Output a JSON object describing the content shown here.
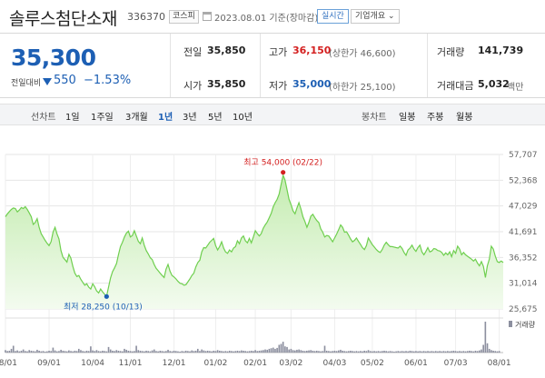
{
  "header": {
    "name": "솔루스첨단소재",
    "code": "336370",
    "market": "코스피",
    "date": "2023.08.01 기준(장마감)",
    "live_btn": "실시간",
    "info_btn": "기업개요 ⌄"
  },
  "quote": {
    "price": "35,300",
    "change_label": "전일대비",
    "change_abs": "550",
    "change_pct": "−1.53%",
    "prev_label": "전일",
    "prev_value": "35,850",
    "high_label": "고가",
    "high_value": "36,150",
    "upper_limit": "(상한가 46,600)",
    "volume_label": "거래량",
    "volume_value": "141,739",
    "open_label": "시가",
    "open_value": "35,850",
    "low_label": "저가",
    "low_value": "35,000",
    "lower_limit": "(하한가 25,100)",
    "amount_label": "거래대금",
    "amount_value": "5,032",
    "amount_unit": "백만"
  },
  "toolbar": {
    "line_label": "선차트",
    "periods": [
      "1일",
      "1주일",
      "3개월",
      "1년",
      "3년",
      "5년",
      "10년"
    ],
    "active_period": "1년",
    "candle_label": "봉차트",
    "candles": [
      "일봉",
      "주봉",
      "월봉"
    ]
  },
  "colors": {
    "price_line": "#6fcf4f",
    "area_top": "#c4ecb0",
    "area_bottom": "#f3fbef",
    "down": "#1d5fb4",
    "up": "#d42020",
    "volume_bar": "#8c8f9f"
  },
  "chart_data": {
    "type": "area",
    "y_ticks": [
      "57,707",
      "52,368",
      "47,029",
      "41,691",
      "36,352",
      "31,014",
      "25,675"
    ],
    "ylim": [
      25675,
      57707
    ],
    "x_ticks": [
      "08/01",
      "09/01",
      "10/04",
      "11/01",
      "12/01",
      "01/02",
      "02/01",
      "03/02",
      "04/03",
      "05/02",
      "06/01",
      "07/03",
      "08/01"
    ],
    "x_tick_pos": [
      0,
      22,
      44,
      63,
      85,
      106,
      126,
      144,
      166,
      185,
      207,
      227,
      249
    ],
    "max_annotation": {
      "label": "최고 54,000 (02/22)",
      "index": 140,
      "value": 54000
    },
    "min_annotation": {
      "label": "최저 28,250 (10/13)",
      "index": 51,
      "value": 28250
    },
    "volume_label": "거래량",
    "price": [
      44800,
      45400,
      45900,
      46300,
      46600,
      46500,
      45800,
      46200,
      46700,
      46500,
      46900,
      46300,
      45600,
      44800,
      43200,
      43600,
      44400,
      42600,
      41300,
      40600,
      39900,
      39300,
      38800,
      39600,
      41600,
      42600,
      41200,
      40200,
      37800,
      36400,
      35900,
      35400,
      37000,
      36200,
      34500,
      33100,
      32400,
      32600,
      31800,
      31200,
      30600,
      30900,
      30200,
      29800,
      30900,
      30300,
      29400,
      29000,
      29800,
      29200,
      28700,
      28250,
      30200,
      32100,
      33400,
      34200,
      35100,
      36900,
      38600,
      39500,
      40600,
      41400,
      41800,
      40600,
      40900,
      41900,
      40800,
      39700,
      39200,
      40400,
      38900,
      37800,
      37100,
      36300,
      35900,
      34900,
      34100,
      33600,
      33100,
      32600,
      32200,
      33900,
      34900,
      33500,
      32600,
      32300,
      31900,
      31400,
      31000,
      30900,
      30600,
      30700,
      31300,
      31900,
      32600,
      33100,
      34400,
      35300,
      35800,
      37500,
      38400,
      38300,
      38900,
      39500,
      39900,
      40300,
      38800,
      37900,
      38600,
      39600,
      38300,
      37500,
      37200,
      37900,
      37500,
      38300,
      38600,
      39800,
      39200,
      40400,
      40800,
      39800,
      39400,
      40300,
      39400,
      40600,
      41900,
      41300,
      40800,
      41300,
      42400,
      43100,
      43700,
      44600,
      45500,
      46800,
      47700,
      48400,
      49500,
      51500,
      53400,
      52400,
      50400,
      48400,
      47300,
      46000,
      45400,
      46600,
      47700,
      46400,
      44800,
      43800,
      42600,
      43600,
      44900,
      45300,
      44600,
      44000,
      43600,
      42300,
      41600,
      40600,
      40900,
      40800,
      40200,
      39600,
      40400,
      41200,
      42100,
      43100,
      42600,
      41600,
      41700,
      41000,
      40200,
      39600,
      39900,
      40400,
      39700,
      39100,
      38400,
      38000,
      38800,
      40400,
      39700,
      39000,
      38500,
      38000,
      37600,
      37400,
      38000,
      38900,
      39500,
      39000,
      38600,
      38600,
      38500,
      38400,
      38300,
      38700,
      38200,
      37400,
      36800,
      37900,
      38300,
      38900,
      38100,
      37600,
      38400,
      38900,
      37500,
      36900,
      37600,
      38400,
      37500,
      37700,
      38200,
      38100,
      37800,
      37700,
      37400,
      36800,
      37300,
      36900,
      37500,
      36500,
      37800,
      37200,
      38700,
      38100,
      36900,
      37400,
      36900,
      36600,
      36300,
      36000,
      35600,
      36000,
      35200,
      34600,
      35500,
      34500,
      32200,
      34600,
      36000,
      38700,
      38100,
      36600,
      35500,
      35300,
      35600,
      35300
    ],
    "volume": [
      0.08,
      0.05,
      0.06,
      0.12,
      0.22,
      0.05,
      0.07,
      0.04,
      0.06,
      0.1,
      0.05,
      0.04,
      0.08,
      0.06,
      0.05,
      0.04,
      0.09,
      0.06,
      0.04,
      0.05,
      0.03,
      0.04,
      0.06,
      0.05,
      0.16,
      0.07,
      0.04,
      0.05,
      0.09,
      0.06,
      0.05,
      0.04,
      0.07,
      0.05,
      0.04,
      0.06,
      0.05,
      0.12,
      0.08,
      0.05,
      0.04,
      0.06,
      0.05,
      0.2,
      0.07,
      0.05,
      0.08,
      0.05,
      0.04,
      0.06,
      0.05,
      0.04,
      0.18,
      0.1,
      0.06,
      0.05,
      0.08,
      0.06,
      0.05,
      0.04,
      0.12,
      0.09,
      0.06,
      0.05,
      0.04,
      0.05,
      0.22,
      0.08,
      0.06,
      0.05,
      0.04,
      0.06,
      0.05,
      0.04,
      0.07,
      0.1,
      0.05,
      0.04,
      0.06,
      0.05,
      0.04,
      0.05,
      0.09,
      0.05,
      0.04,
      0.06,
      0.05,
      0.04,
      0.03,
      0.05,
      0.04,
      0.06,
      0.05,
      0.04,
      0.07,
      0.05,
      0.06,
      0.12,
      0.05,
      0.1,
      0.07,
      0.05,
      0.06,
      0.05,
      0.04,
      0.06,
      0.05,
      0.08,
      0.06,
      0.05,
      0.04,
      0.05,
      0.04,
      0.06,
      0.05,
      0.04,
      0.05,
      0.06,
      0.05,
      0.07,
      0.06,
      0.05,
      0.04,
      0.05,
      0.06,
      0.05,
      0.08,
      0.05,
      0.06,
      0.07,
      0.08,
      0.1,
      0.09,
      0.12,
      0.14,
      0.16,
      0.12,
      0.15,
      0.25,
      0.28,
      0.35,
      0.2,
      0.18,
      0.1,
      0.12,
      0.08,
      0.07,
      0.09,
      0.1,
      0.08,
      0.06,
      0.05,
      0.06,
      0.07,
      0.08,
      0.06,
      0.05,
      0.06,
      0.05,
      0.04,
      0.05,
      0.22,
      0.06,
      0.05,
      0.04,
      0.05,
      0.06,
      0.05,
      0.07,
      0.09,
      0.06,
      0.05,
      0.04,
      0.05,
      0.06,
      0.05,
      0.04,
      0.05,
      0.04,
      0.05,
      0.04,
      0.06,
      0.05,
      0.08,
      0.05,
      0.04,
      0.05,
      0.04,
      0.05,
      0.04,
      0.05,
      0.06,
      0.05,
      0.04,
      0.05,
      0.04,
      0.03,
      0.04,
      0.05,
      0.04,
      0.05,
      0.04,
      0.05,
      0.04,
      0.06,
      0.05,
      0.04,
      0.05,
      0.04,
      0.05,
      0.04,
      0.05,
      0.04,
      0.05,
      0.04,
      0.05,
      0.04,
      0.05,
      0.04,
      0.05,
      0.04,
      0.05,
      0.04,
      0.05,
      0.04,
      0.05,
      0.06,
      0.05,
      0.04,
      0.05,
      0.04,
      0.05,
      0.04,
      0.05,
      0.06,
      0.05,
      0.04,
      0.06,
      0.05,
      0.07,
      0.1,
      0.25,
      1.0,
      0.3,
      0.12,
      0.08,
      0.06,
      0.05,
      0.04,
      0.05
    ]
  }
}
